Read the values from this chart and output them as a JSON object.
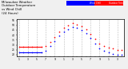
{
  "title": "Milwaukee Weather\nOutdoor Temperature\nvs Wind Chill\n(24 Hours)",
  "title_fontsize": 2.8,
  "bg_color": "#f0f0f0",
  "plot_bg": "#ffffff",
  "grid_color": "#aaaaaa",
  "temp_color": "#ff0000",
  "windchill_color": "#0000ff",
  "legend_temp_label": "Outdoor Temp",
  "legend_wc_label": "Wind Chill",
  "hours": [
    0,
    1,
    2,
    3,
    4,
    5,
    6,
    7,
    8,
    9,
    10,
    11,
    12,
    13,
    14,
    15,
    16,
    17,
    18,
    19,
    20,
    21,
    22,
    23
  ],
  "temp": [
    28,
    28,
    28,
    28,
    28,
    28,
    29,
    33,
    38,
    43,
    47,
    50,
    52,
    51,
    49,
    46,
    41,
    36,
    31,
    29,
    27,
    26,
    25,
    25
  ],
  "windchill": [
    22,
    22,
    22,
    22,
    22,
    22,
    24,
    29,
    34,
    39,
    43,
    46,
    48,
    47,
    45,
    42,
    37,
    31,
    26,
    24,
    22,
    21,
    20,
    20
  ],
  "ylim": [
    18,
    56
  ],
  "xlim": [
    -0.5,
    23.5
  ],
  "yticks": [
    20,
    25,
    30,
    35,
    40,
    45,
    50,
    55
  ],
  "xticks": [
    0,
    1,
    2,
    3,
    4,
    5,
    6,
    7,
    8,
    9,
    10,
    11,
    12,
    13,
    14,
    15,
    16,
    17,
    18,
    19,
    20,
    21,
    22,
    23
  ],
  "x_labels": [
    "1",
    "",
    "3",
    "",
    "5",
    "",
    "7",
    "",
    "9",
    "",
    "1",
    "",
    "3",
    "",
    "5",
    "",
    "7",
    "",
    "9",
    "",
    "1",
    "",
    "3",
    ""
  ],
  "grid_hours": [
    0,
    2,
    4,
    6,
    8,
    10,
    12,
    14,
    16,
    18,
    20,
    22
  ],
  "flat_temp_end": 5,
  "flat_wc_end": 5
}
